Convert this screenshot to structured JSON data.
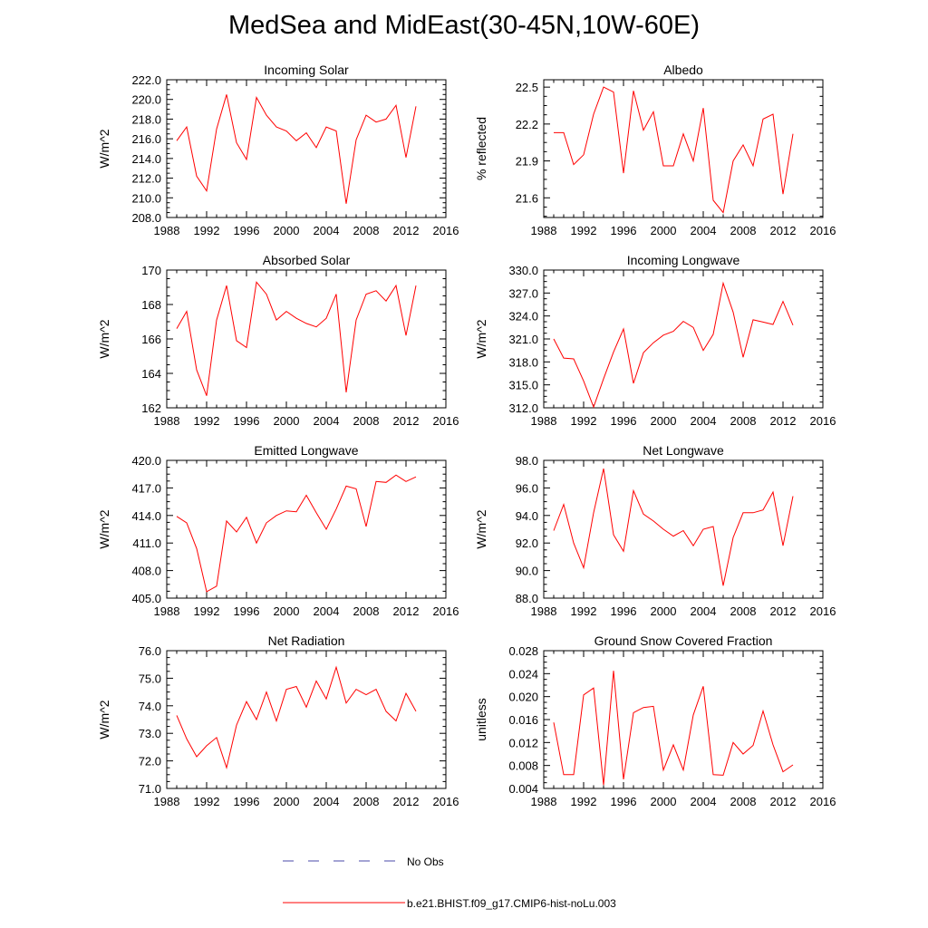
{
  "title": "MedSea and MidEast(30-45N,10W-60E)",
  "colors": {
    "model_line": "#ff0000",
    "obs_line": "#4a4aaa",
    "axis": "#000000"
  },
  "legend": {
    "entries": [
      {
        "label": "No Obs",
        "style": "dashed",
        "color": "#4a4aaa"
      },
      {
        "label": "b.e21.BHIST.f09_g17.CMIP6-hist-noLu.003",
        "style": "solid",
        "color": "#ff0000"
      }
    ]
  },
  "chart_data": [
    {
      "type": "line",
      "title": "Incoming Solar",
      "ylabel": "W/m^2",
      "xlim": [
        1988,
        2016
      ],
      "xticks": [
        1988,
        1992,
        1996,
        2000,
        2004,
        2008,
        2012,
        2016
      ],
      "ylim": [
        208,
        222
      ],
      "yticks": [
        208,
        210,
        212,
        214,
        216,
        218,
        220,
        222
      ],
      "yticklabels": [
        "208.0",
        "210.0",
        "212.0",
        "214.0",
        "216.0",
        "218.0",
        "220.0",
        "222.0"
      ],
      "x": [
        1989,
        1990,
        1991,
        1992,
        1993,
        1994,
        1995,
        1996,
        1997,
        1998,
        1999,
        2000,
        2001,
        2002,
        2003,
        2004,
        2005,
        2006,
        2007,
        2008,
        2009,
        2010,
        2011,
        2012,
        2013
      ],
      "series": [
        {
          "name": "b.e21.BHIST.f09_g17.CMIP6-hist-noLu.003",
          "values": [
            215.8,
            217.2,
            212.2,
            210.7,
            217.0,
            220.5,
            215.6,
            213.9,
            220.2,
            218.4,
            217.2,
            216.8,
            215.8,
            216.6,
            215.1,
            217.2,
            216.8,
            209.4,
            215.9,
            218.4,
            217.7,
            218.0,
            219.4,
            214.1,
            219.3
          ]
        }
      ]
    },
    {
      "type": "line",
      "title": "Albedo",
      "ylabel": "% reflected",
      "xlim": [
        1988,
        2016
      ],
      "xticks": [
        1988,
        1992,
        1996,
        2000,
        2004,
        2008,
        2012,
        2016
      ],
      "ylim": [
        21.44,
        22.56
      ],
      "yticks": [
        21.6,
        21.9,
        22.2,
        22.5
      ],
      "yticklabels": [
        "21.6",
        "21.9",
        "22.2",
        "22.5"
      ],
      "x": [
        1989,
        1990,
        1991,
        1992,
        1993,
        1994,
        1995,
        1996,
        1997,
        1998,
        1999,
        2000,
        2001,
        2002,
        2003,
        2004,
        2005,
        2006,
        2007,
        2008,
        2009,
        2010,
        2011,
        2012,
        2013
      ],
      "series": [
        {
          "name": "b.e21.BHIST.f09_g17.CMIP6-hist-noLu.003",
          "values": [
            22.13,
            22.13,
            21.87,
            21.95,
            22.28,
            22.5,
            22.46,
            21.8,
            22.47,
            22.15,
            22.3,
            21.86,
            21.86,
            22.12,
            21.9,
            22.33,
            21.58,
            21.48,
            21.9,
            22.03,
            21.86,
            22.24,
            22.28,
            21.63,
            22.12
          ]
        }
      ]
    },
    {
      "type": "line",
      "title": "Absorbed Solar",
      "ylabel": "W/m^2",
      "xlim": [
        1988,
        2016
      ],
      "xticks": [
        1988,
        1992,
        1996,
        2000,
        2004,
        2008,
        2012,
        2016
      ],
      "ylim": [
        162,
        170
      ],
      "yticks": [
        162,
        164,
        166,
        168,
        170
      ],
      "yticklabels": [
        "162",
        "164",
        "166",
        "168",
        "170"
      ],
      "x": [
        1989,
        1990,
        1991,
        1992,
        1993,
        1994,
        1995,
        1996,
        1997,
        1998,
        1999,
        2000,
        2001,
        2002,
        2003,
        2004,
        2005,
        2006,
        2007,
        2008,
        2009,
        2010,
        2011,
        2012,
        2013
      ],
      "series": [
        {
          "name": "b.e21.BHIST.f09_g17.CMIP6-hist-noLu.003",
          "values": [
            166.6,
            167.6,
            164.2,
            162.7,
            167.1,
            169.1,
            165.9,
            165.5,
            169.3,
            168.6,
            167.1,
            167.6,
            167.2,
            166.9,
            166.7,
            167.2,
            168.6,
            162.9,
            167.1,
            168.6,
            168.8,
            168.2,
            169.1,
            166.2,
            169.1
          ]
        }
      ]
    },
    {
      "type": "line",
      "title": "Incoming Longwave",
      "ylabel": "W/m^2",
      "xlim": [
        1988,
        2016
      ],
      "xticks": [
        1988,
        1992,
        1996,
        2000,
        2004,
        2008,
        2012,
        2016
      ],
      "ylim": [
        312,
        330
      ],
      "yticks": [
        312,
        315,
        318,
        321,
        324,
        327,
        330
      ],
      "yticklabels": [
        "312.0",
        "315.0",
        "318.0",
        "321.0",
        "324.0",
        "327.0",
        "330.0"
      ],
      "x": [
        1989,
        1990,
        1991,
        1992,
        1993,
        1994,
        1995,
        1996,
        1997,
        1998,
        1999,
        2000,
        2001,
        2002,
        2003,
        2004,
        2005,
        2006,
        2007,
        2008,
        2009,
        2010,
        2011,
        2012,
        2013
      ],
      "series": [
        {
          "name": "b.e21.BHIST.f09_g17.CMIP6-hist-noLu.003",
          "values": [
            321.0,
            318.5,
            318.4,
            315.5,
            312.1,
            315.8,
            319.3,
            322.3,
            315.2,
            319.2,
            320.5,
            321.5,
            322.0,
            323.3,
            322.5,
            319.5,
            321.6,
            328.3,
            324.5,
            318.6,
            323.5,
            323.2,
            322.9,
            325.9,
            322.8
          ]
        }
      ]
    },
    {
      "type": "line",
      "title": "Emitted Longwave",
      "ylabel": "W/m^2",
      "xlim": [
        1988,
        2016
      ],
      "xticks": [
        1988,
        1992,
        1996,
        2000,
        2004,
        2008,
        2012,
        2016
      ],
      "ylim": [
        405,
        420
      ],
      "yticks": [
        405,
        408,
        411,
        414,
        417,
        420
      ],
      "yticklabels": [
        "405.0",
        "408.0",
        "411.0",
        "414.0",
        "417.0",
        "420.0"
      ],
      "x": [
        1989,
        1990,
        1991,
        1992,
        1993,
        1994,
        1995,
        1996,
        1997,
        1998,
        1999,
        2000,
        2001,
        2002,
        2003,
        2004,
        2005,
        2006,
        2007,
        2008,
        2009,
        2010,
        2011,
        2012,
        2013
      ],
      "series": [
        {
          "name": "b.e21.BHIST.f09_g17.CMIP6-hist-noLu.003",
          "values": [
            413.9,
            413.2,
            410.4,
            405.7,
            406.3,
            413.4,
            412.2,
            413.8,
            411.0,
            413.2,
            414.0,
            414.5,
            414.4,
            416.2,
            414.3,
            412.5,
            414.7,
            417.2,
            416.9,
            412.8,
            417.7,
            417.6,
            418.4,
            417.7,
            418.2
          ]
        }
      ]
    },
    {
      "type": "line",
      "title": "Net Longwave",
      "ylabel": "W/m^2",
      "xlim": [
        1988,
        2016
      ],
      "xticks": [
        1988,
        1992,
        1996,
        2000,
        2004,
        2008,
        2012,
        2016
      ],
      "ylim": [
        88,
        98
      ],
      "yticks": [
        88,
        90,
        92,
        94,
        96,
        98
      ],
      "yticklabels": [
        "88.0",
        "90.0",
        "92.0",
        "94.0",
        "96.0",
        "98.0"
      ],
      "x": [
        1989,
        1990,
        1991,
        1992,
        1993,
        1994,
        1995,
        1996,
        1997,
        1998,
        1999,
        2000,
        2001,
        2002,
        2003,
        2004,
        2005,
        2006,
        2007,
        2008,
        2009,
        2010,
        2011,
        2012,
        2013
      ],
      "series": [
        {
          "name": "b.e21.BHIST.f09_g17.CMIP6-hist-noLu.003",
          "values": [
            92.9,
            94.8,
            92.0,
            90.2,
            94.2,
            97.4,
            92.6,
            91.4,
            95.8,
            94.1,
            93.6,
            93.0,
            92.5,
            92.9,
            91.8,
            93.0,
            93.2,
            88.9,
            92.4,
            94.2,
            94.2,
            94.4,
            95.7,
            91.8,
            95.4
          ]
        }
      ]
    },
    {
      "type": "line",
      "title": "Net Radiation",
      "ylabel": "W/m^2",
      "xlim": [
        1988,
        2016
      ],
      "xticks": [
        1988,
        1992,
        1996,
        2000,
        2004,
        2008,
        2012,
        2016
      ],
      "ylim": [
        71,
        76
      ],
      "yticks": [
        71,
        72,
        73,
        74,
        75,
        76
      ],
      "yticklabels": [
        "71.0",
        "72.0",
        "73.0",
        "74.0",
        "75.0",
        "76.0"
      ],
      "x": [
        1989,
        1990,
        1991,
        1992,
        1993,
        1994,
        1995,
        1996,
        1997,
        1998,
        1999,
        2000,
        2001,
        2002,
        2003,
        2004,
        2005,
        2006,
        2007,
        2008,
        2009,
        2010,
        2011,
        2012,
        2013
      ],
      "series": [
        {
          "name": "b.e21.BHIST.f09_g17.CMIP6-hist-noLu.003",
          "values": [
            73.65,
            72.8,
            72.15,
            72.55,
            72.85,
            71.75,
            73.3,
            74.15,
            73.5,
            74.5,
            73.45,
            74.6,
            74.7,
            73.95,
            74.9,
            74.25,
            75.4,
            74.1,
            74.6,
            74.4,
            74.6,
            73.8,
            73.45,
            74.45,
            73.8
          ]
        }
      ]
    },
    {
      "type": "line",
      "title": "Ground Snow Covered Fraction",
      "ylabel": "unitless",
      "xlim": [
        1988,
        2016
      ],
      "xticks": [
        1988,
        1992,
        1996,
        2000,
        2004,
        2008,
        2012,
        2016
      ],
      "ylim": [
        0.004,
        0.028
      ],
      "yticks": [
        0.004,
        0.008,
        0.012,
        0.016,
        0.02,
        0.024,
        0.028
      ],
      "yticklabels": [
        "0.004",
        "0.008",
        "0.012",
        "0.016",
        "0.020",
        "0.024",
        "0.028"
      ],
      "x": [
        1989,
        1990,
        1991,
        1992,
        1993,
        1994,
        1995,
        1996,
        1997,
        1998,
        1999,
        2000,
        2001,
        2002,
        2003,
        2004,
        2005,
        2006,
        2007,
        2008,
        2009,
        2010,
        2011,
        2012,
        2013
      ],
      "series": [
        {
          "name": "b.e21.BHIST.f09_g17.CMIP6-hist-noLu.003",
          "values": [
            0.0155,
            0.0064,
            0.0064,
            0.0203,
            0.0215,
            0.0046,
            0.0245,
            0.0056,
            0.0172,
            0.0181,
            0.0183,
            0.0072,
            0.0116,
            0.0072,
            0.0168,
            0.0218,
            0.0064,
            0.0063,
            0.012,
            0.01,
            0.0115,
            0.0175,
            0.0116,
            0.0069,
            0.0081
          ]
        }
      ]
    }
  ]
}
